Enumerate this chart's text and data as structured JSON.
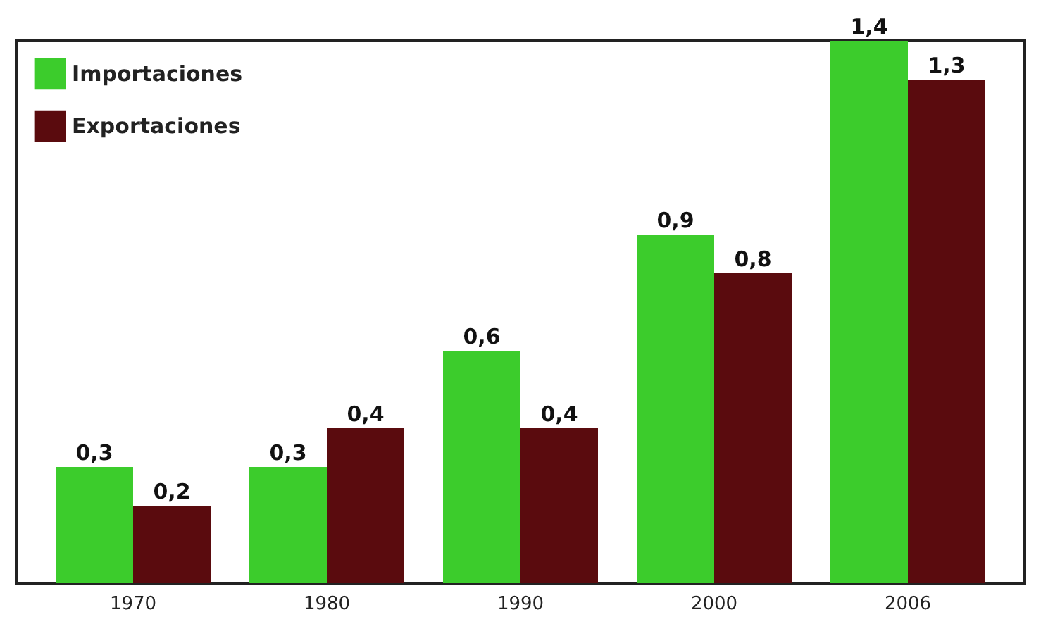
{
  "chart_data": {
    "type": "bar",
    "categories": [
      "1970",
      "1980",
      "1990",
      "2000",
      "2006"
    ],
    "series": [
      {
        "name": "Importaciones",
        "color": "#3ccc2c",
        "values": [
          0.3,
          0.3,
          0.6,
          0.9,
          1.4
        ],
        "value_labels": [
          "0,3",
          "0,3",
          "0,6",
          "0,9",
          "1,4"
        ]
      },
      {
        "name": "Exportaciones",
        "color": "#5a0b0e",
        "values": [
          0.2,
          0.4,
          0.4,
          0.8,
          1.3
        ],
        "value_labels": [
          "0,2",
          "0,4",
          "0,4",
          "0,8",
          "1,3"
        ]
      }
    ],
    "legend": "top left",
    "grid": false
  }
}
